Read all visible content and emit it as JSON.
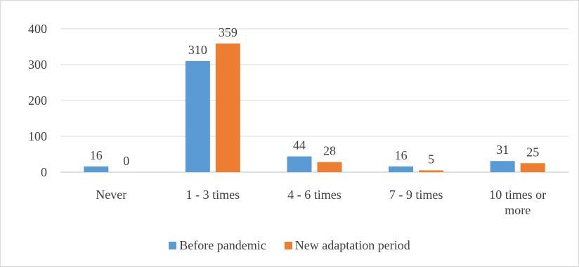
{
  "chart_data": {
    "type": "bar",
    "categories": [
      "Never",
      "1 - 3 times",
      "4 - 6 times",
      "7 - 9 times",
      "10 times or more"
    ],
    "series": [
      {
        "name": "Before pandemic",
        "values": [
          16,
          310,
          44,
          16,
          31
        ],
        "color": "#5b9bd5"
      },
      {
        "name": "New adaptation period",
        "values": [
          0,
          359,
          28,
          5,
          25
        ],
        "color": "#ed7d31"
      }
    ],
    "yticks": [
      "0",
      "100",
      "200",
      "300",
      "400"
    ],
    "ylim": [
      0,
      400
    ],
    "grid": true,
    "legend_position": "bottom",
    "data_labels": true
  }
}
